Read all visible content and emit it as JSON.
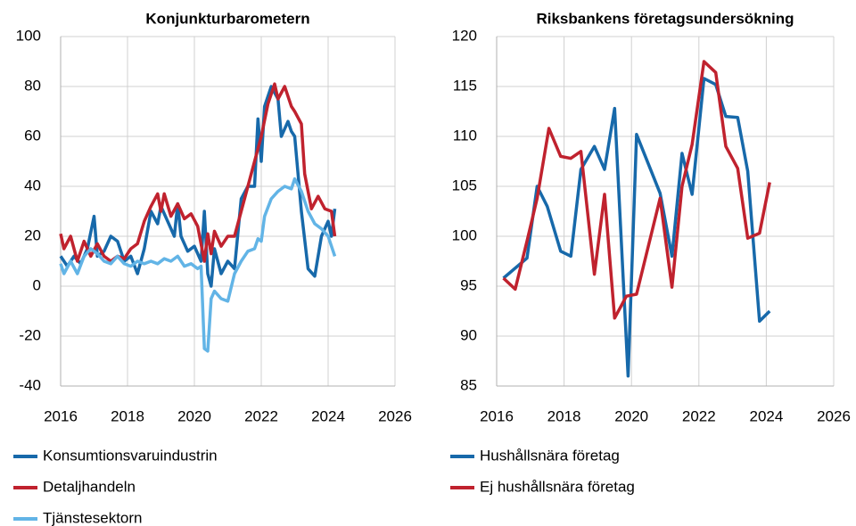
{
  "chart_data": [
    {
      "type": "line",
      "title": "Konjunkturbarometern",
      "xlim": [
        2016,
        2026
      ],
      "xticks": [
        2016,
        2018,
        2020,
        2022,
        2024,
        2026
      ],
      "ylim": [
        -40,
        100
      ],
      "yticks": [
        -40,
        -20,
        0,
        20,
        40,
        60,
        80,
        100
      ],
      "grid": true,
      "series": [
        {
          "name": "Konsumtionsvaruindustrin",
          "color": "#1769aa",
          "x": [
            2016.0,
            2016.2,
            2016.4,
            2016.6,
            2016.8,
            2017.0,
            2017.1,
            2017.3,
            2017.5,
            2017.7,
            2017.9,
            2018.1,
            2018.3,
            2018.5,
            2018.7,
            2018.9,
            2019.0,
            2019.2,
            2019.4,
            2019.5,
            2019.6,
            2019.8,
            2020.0,
            2020.2,
            2020.3,
            2020.4,
            2020.5,
            2020.6,
            2020.8,
            2021.0,
            2021.2,
            2021.4,
            2021.6,
            2021.8,
            2021.9,
            2022.0,
            2022.1,
            2022.3,
            2022.5,
            2022.6,
            2022.8,
            2022.9,
            2023.0,
            2023.2,
            2023.4,
            2023.6,
            2023.8,
            2024.0,
            2024.1,
            2024.2
          ],
          "values": [
            12,
            8,
            12,
            9,
            15,
            28,
            12,
            14,
            20,
            18,
            10,
            12,
            5,
            15,
            30,
            25,
            32,
            26,
            20,
            33,
            20,
            14,
            16,
            10,
            30,
            5,
            0,
            15,
            5,
            10,
            7,
            35,
            40,
            40,
            67,
            50,
            72,
            80,
            75,
            60,
            66,
            62,
            60,
            30,
            7,
            4,
            20,
            26,
            20,
            31
          ]
        },
        {
          "name": "Detaljhandeln",
          "color": "#c0222e",
          "x": [
            2016.0,
            2016.1,
            2016.3,
            2016.5,
            2016.7,
            2016.9,
            2017.1,
            2017.3,
            2017.5,
            2017.7,
            2017.9,
            2018.1,
            2018.3,
            2018.5,
            2018.7,
            2018.9,
            2019.0,
            2019.1,
            2019.3,
            2019.5,
            2019.7,
            2019.9,
            2020.1,
            2020.3,
            2020.4,
            2020.5,
            2020.6,
            2020.8,
            2021.0,
            2021.2,
            2021.4,
            2021.6,
            2021.8,
            2022.0,
            2022.2,
            2022.4,
            2022.5,
            2022.7,
            2022.9,
            2023.0,
            2023.2,
            2023.3,
            2023.5,
            2023.7,
            2023.9,
            2024.1,
            2024.2
          ],
          "values": [
            21,
            15,
            20,
            10,
            18,
            12,
            17,
            12,
            10,
            12,
            11,
            15,
            17,
            26,
            32,
            37,
            30,
            37,
            28,
            33,
            27,
            29,
            24,
            10,
            21,
            13,
            22,
            16,
            20,
            20,
            30,
            40,
            50,
            60,
            73,
            81,
            75,
            80,
            72,
            70,
            65,
            45,
            31,
            36,
            31,
            30,
            20
          ]
        },
        {
          "name": "Tjänstesektorn",
          "color": "#62b4e6",
          "x": [
            2016.0,
            2016.1,
            2016.3,
            2016.5,
            2016.7,
            2016.9,
            2017.1,
            2017.3,
            2017.5,
            2017.7,
            2017.9,
            2018.1,
            2018.3,
            2018.5,
            2018.7,
            2018.9,
            2019.1,
            2019.3,
            2019.5,
            2019.7,
            2019.9,
            2020.1,
            2020.2,
            2020.3,
            2020.4,
            2020.5,
            2020.6,
            2020.8,
            2021.0,
            2021.2,
            2021.4,
            2021.6,
            2021.8,
            2021.9,
            2022.0,
            2022.1,
            2022.3,
            2022.5,
            2022.7,
            2022.9,
            2023.0,
            2023.2,
            2023.4,
            2023.6,
            2023.8,
            2024.0,
            2024.2
          ],
          "values": [
            9,
            5,
            10,
            5,
            12,
            15,
            13,
            10,
            9,
            12,
            9,
            8,
            10,
            9,
            10,
            9,
            11,
            10,
            12,
            8,
            9,
            7,
            8,
            -25,
            -26,
            -5,
            -2,
            -5,
            -6,
            5,
            10,
            14,
            15,
            19,
            18,
            28,
            35,
            38,
            40,
            39,
            43,
            38,
            30,
            25,
            23,
            20,
            12
          ]
        }
      ]
    },
    {
      "type": "line",
      "title": "Riksbankens företagsundersökning",
      "xlim": [
        2016,
        2026
      ],
      "xticks": [
        2016,
        2018,
        2020,
        2022,
        2024,
        2026
      ],
      "ylim": [
        85,
        120
      ],
      "yticks": [
        85,
        90,
        95,
        100,
        105,
        110,
        115,
        120
      ],
      "grid": true,
      "series": [
        {
          "name": "Hushållsnära företag",
          "color": "#1769aa",
          "x": [
            2016.2,
            2016.9,
            2017.2,
            2017.5,
            2017.9,
            2018.2,
            2018.5,
            2018.9,
            2019.2,
            2019.5,
            2019.9,
            2020.15,
            2020.85,
            2021.2,
            2021.5,
            2021.8,
            2022.15,
            2022.5,
            2022.8,
            2023.15,
            2023.45,
            2023.8,
            2024.1
          ],
          "values": [
            95.8,
            97.8,
            105,
            103,
            98.5,
            98,
            106.7,
            109,
            106.7,
            112.8,
            86,
            110.2,
            104.3,
            98,
            108.3,
            104.2,
            115.8,
            115.2,
            112,
            111.9,
            106.5,
            91.5,
            92.5
          ]
        },
        {
          "name": "Ej hushållsnära företag",
          "color": "#c0222e",
          "x": [
            2016.2,
            2016.55,
            2016.9,
            2017.2,
            2017.55,
            2017.9,
            2018.2,
            2018.5,
            2018.9,
            2019.2,
            2019.5,
            2019.85,
            2020.15,
            2020.85,
            2021.2,
            2021.5,
            2021.8,
            2022.15,
            2022.5,
            2022.8,
            2023.15,
            2023.45,
            2023.8,
            2024.1
          ],
          "values": [
            95.8,
            94.7,
            99.5,
            103.8,
            110.8,
            108,
            107.8,
            108.5,
            96.2,
            104.2,
            91.8,
            94,
            94.2,
            103.8,
            94.9,
            105,
            109.2,
            117.5,
            116.4,
            109,
            106.8,
            99.8,
            100.3,
            105.4
          ]
        }
      ]
    }
  ]
}
